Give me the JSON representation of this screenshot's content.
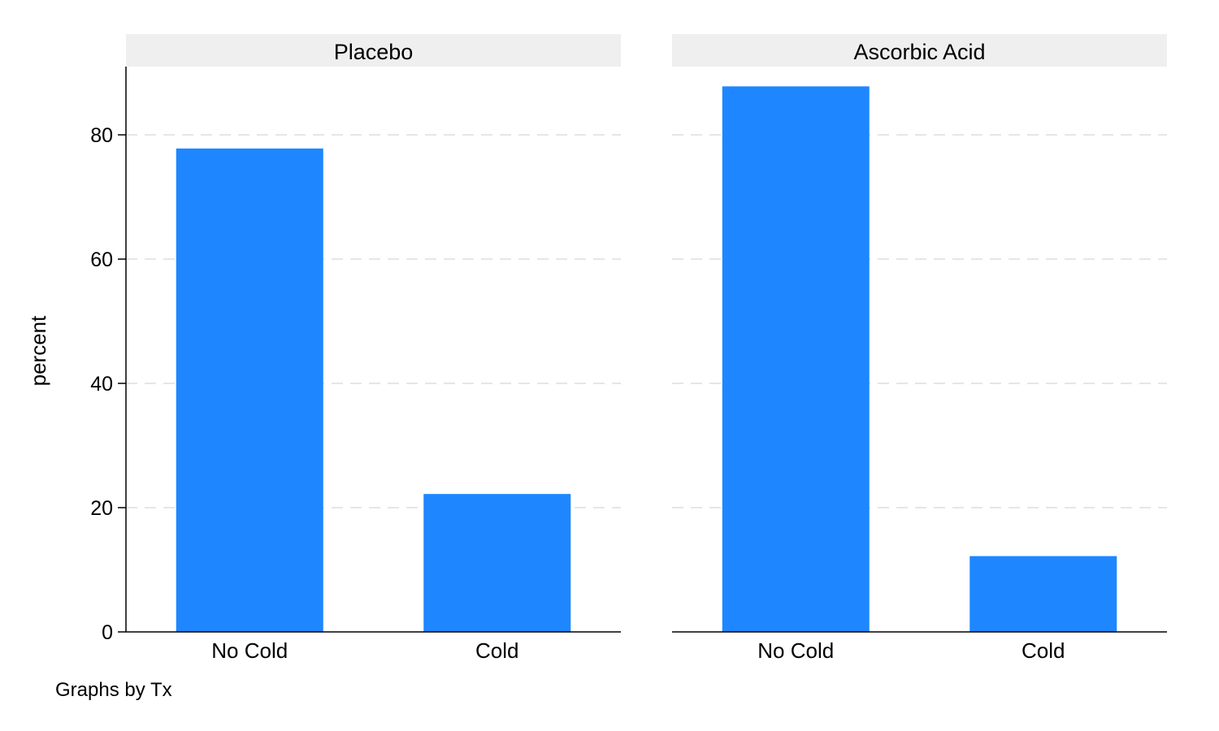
{
  "chart_data": {
    "type": "bar",
    "ylabel": "percent",
    "ylim": [
      0,
      90
    ],
    "yticks": [
      0,
      20,
      40,
      60,
      80
    ],
    "grid": true,
    "bar_color": "#1e87ff",
    "note": "Graphs by Tx",
    "panels": [
      {
        "title": "Placebo",
        "categories": [
          "No Cold",
          "Cold"
        ],
        "values": [
          77.8,
          22.2
        ]
      },
      {
        "title": "Ascorbic Acid",
        "categories": [
          "No Cold",
          "Cold"
        ],
        "values": [
          87.8,
          12.2
        ]
      }
    ]
  }
}
